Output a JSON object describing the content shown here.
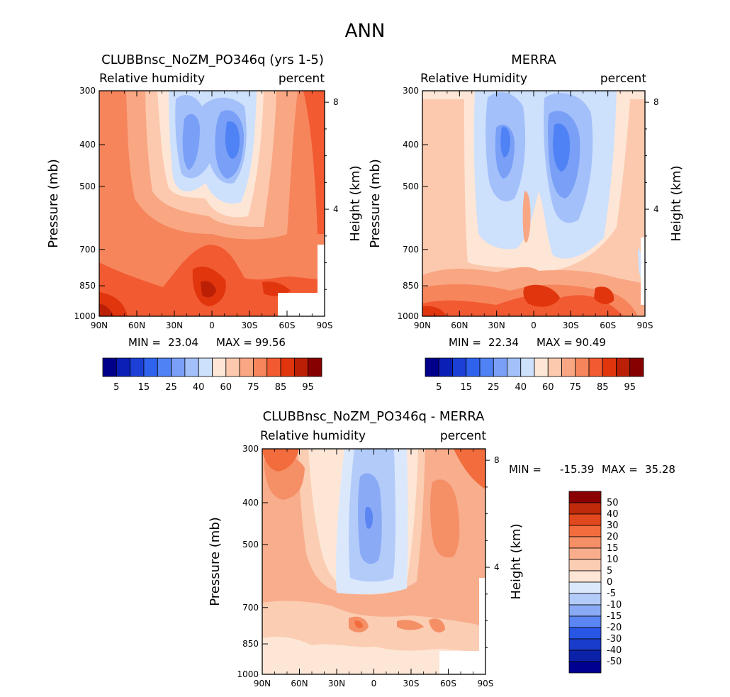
{
  "figure": {
    "title": "ANN"
  },
  "colors": {
    "rh_levels": [
      "#00008a",
      "#0a1fb5",
      "#1c3fd6",
      "#2f63ee",
      "#4f82f5",
      "#799ff7",
      "#a3c0fa",
      "#cde0fc",
      "#fde6d6",
      "#fcc9ae",
      "#f9a683",
      "#f6855c",
      "#f25a31",
      "#e1350d",
      "#bb1f06",
      "#870000"
    ],
    "diff_levels": [
      "#000090",
      "#0b22a8",
      "#1a3ccc",
      "#2857e6",
      "#5a85f2",
      "#8aaaf6",
      "#b3cbf9",
      "#dbe8fc",
      "#fde6d6",
      "#fbcdb3",
      "#f8ad8c",
      "#f58f66",
      "#f26c3d",
      "#e2481d",
      "#bf2a0a",
      "#8a0000"
    ]
  },
  "chart_data": [
    {
      "type": "heatmap",
      "title": "CLUBBnsc_NoZM_PO346q (yrs 1-5)",
      "left_label": "Relative humidity",
      "right_label": "percent",
      "ylabel": "Pressure (mb)",
      "ylabel2": "Height (km)",
      "x_ticks": [
        "90N",
        "60N",
        "30N",
        "0",
        "30S",
        "60S",
        "90S"
      ],
      "y_ticks": [
        "300",
        "400",
        "500",
        "700",
        "850",
        "1000"
      ],
      "y2_ticks": [
        "8",
        "4"
      ],
      "min_label": "MIN =",
      "min": "23.04",
      "max_label": "MAX =",
      "max": "99.56",
      "colorbar_labels": [
        "5",
        "15",
        "25",
        "40",
        "60",
        "75",
        "85",
        "95"
      ]
    },
    {
      "type": "heatmap",
      "title": "MERRA",
      "left_label": "Relative Humidity",
      "right_label": "percent",
      "ylabel": "Pressure (mb)",
      "ylabel2": "Height (km)",
      "x_ticks": [
        "90N",
        "60N",
        "30N",
        "0",
        "30S",
        "60S",
        "90S"
      ],
      "y_ticks": [
        "300",
        "400",
        "500",
        "700",
        "850",
        "1000"
      ],
      "y2_ticks": [
        "8",
        "4"
      ],
      "min_label": "MIN =",
      "min": "22.34",
      "max_label": "MAX =",
      "max": "90.49",
      "colorbar_labels": [
        "5",
        "15",
        "25",
        "40",
        "60",
        "75",
        "85",
        "95"
      ]
    },
    {
      "type": "heatmap",
      "title": "CLUBBnsc_NoZM_PO346q - MERRA",
      "left_label": "Relative humidity",
      "right_label": "percent",
      "ylabel": "Pressure (mb)",
      "ylabel2": "Height (km)",
      "x_ticks": [
        "90N",
        "60N",
        "30N",
        "0",
        "30S",
        "60S",
        "90S"
      ],
      "y_ticks": [
        "300",
        "400",
        "500",
        "700",
        "850",
        "1000"
      ],
      "y2_ticks": [
        "8",
        "4"
      ],
      "min_label": "MIN =",
      "min": "-15.39",
      "max_label": "MAX =",
      "max": "35.28",
      "colorbar_labels": [
        "50",
        "40",
        "30",
        "20",
        "15",
        "10",
        "5",
        "0",
        "-5",
        "-10",
        "-15",
        "-20",
        "-30",
        "-40",
        "-50"
      ]
    }
  ]
}
